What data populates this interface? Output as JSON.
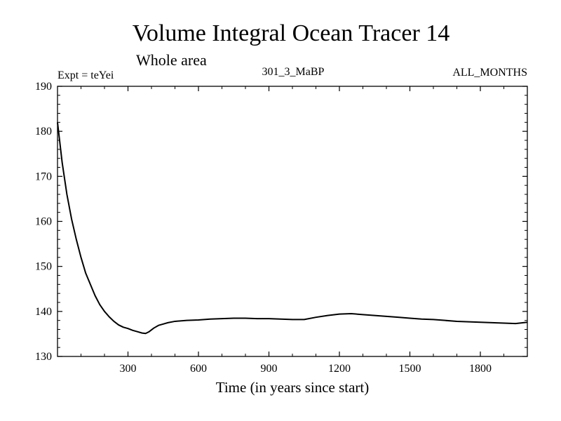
{
  "chart_data": {
    "type": "line",
    "title": "Volume Integral Ocean Tracer 14",
    "subtitle": "Whole area",
    "experiment_label": "Expt = teYei",
    "run_label": "301_3_MaBP",
    "period_label": "ALL_MONTHS",
    "xlabel": "Time (in years since start)",
    "ylabel": "",
    "xlim": [
      0,
      2000
    ],
    "ylim": [
      130,
      190
    ],
    "xticks": [
      300,
      600,
      900,
      1200,
      1500,
      1800
    ],
    "yticks": [
      130,
      140,
      150,
      160,
      170,
      180,
      190
    ],
    "grid": false,
    "series": [
      {
        "name": "Volume Integral Ocean Tracer 14",
        "color": "#000000",
        "x": [
          0,
          20,
          40,
          60,
          80,
          100,
          120,
          140,
          160,
          180,
          200,
          220,
          240,
          260,
          280,
          300,
          320,
          340,
          360,
          375,
          390,
          410,
          430,
          450,
          470,
          500,
          550,
          600,
          650,
          700,
          750,
          800,
          850,
          900,
          950,
          1000,
          1050,
          1100,
          1150,
          1200,
          1250,
          1300,
          1350,
          1400,
          1450,
          1500,
          1550,
          1600,
          1650,
          1700,
          1750,
          1800,
          1850,
          1900,
          1950,
          2000
        ],
        "values": [
          182,
          173,
          166,
          160.5,
          156,
          152,
          148.5,
          146,
          143.5,
          141.5,
          140,
          138.8,
          137.8,
          137,
          136.5,
          136.2,
          135.8,
          135.5,
          135.2,
          135.1,
          135.5,
          136.3,
          136.9,
          137.2,
          137.5,
          137.8,
          138,
          138.1,
          138.3,
          138.4,
          138.5,
          138.5,
          138.4,
          138.4,
          138.3,
          138.2,
          138.2,
          138.7,
          139.1,
          139.4,
          139.5,
          139.3,
          139.1,
          138.9,
          138.7,
          138.5,
          138.3,
          138.2,
          138,
          137.8,
          137.7,
          137.6,
          137.5,
          137.4,
          137.3,
          137.6
        ]
      }
    ]
  }
}
